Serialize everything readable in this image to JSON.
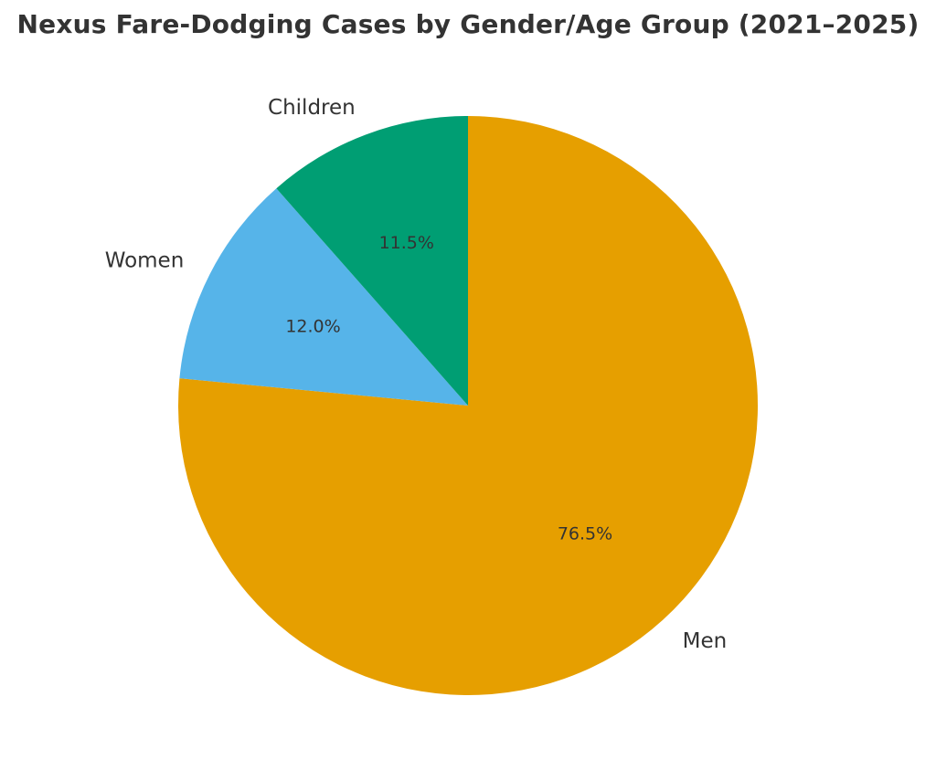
{
  "chart_data": {
    "type": "pie",
    "title": "Nexus Fare-Dodging Cases by Gender/Age Group (2021–2025)",
    "slices": [
      {
        "label": "Men",
        "percent_label": "76.5%",
        "value": 76.5,
        "color": "#E69F00"
      },
      {
        "label": "Women",
        "percent_label": "12.0%",
        "value": 12.0,
        "color": "#56B4E9"
      },
      {
        "label": "Children",
        "percent_label": "11.5%",
        "value": 11.5,
        "color": "#009E73"
      }
    ],
    "start_angle": "top",
    "direction": "clockwise",
    "legend": "none"
  }
}
